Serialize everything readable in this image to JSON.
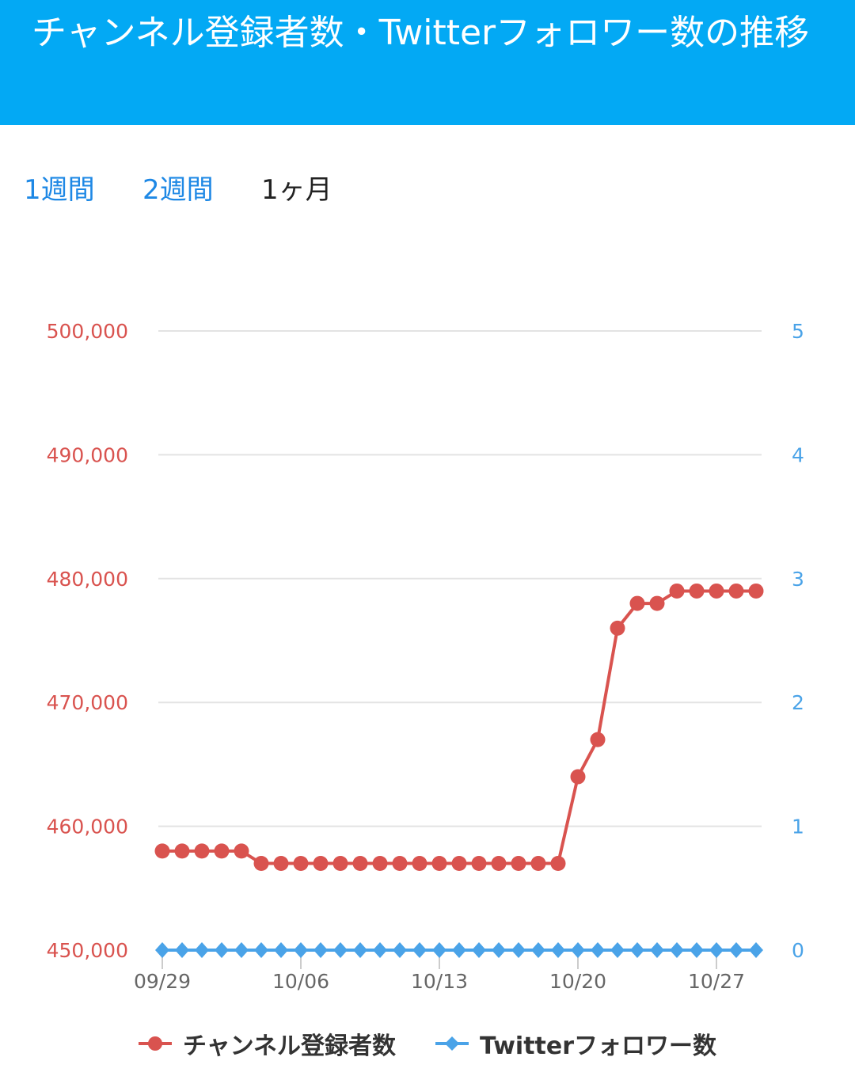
{
  "header": {
    "title": "チャンネル登録者数・Twitterフォロワー数の推移"
  },
  "tabs": [
    {
      "label": "1週間"
    },
    {
      "label": "2週間"
    },
    {
      "label": "1ヶ月",
      "active": true
    }
  ],
  "chart_data": {
    "type": "line",
    "x": [
      "09/29",
      "09/30",
      "10/01",
      "10/02",
      "10/03",
      "10/04",
      "10/05",
      "10/06",
      "10/07",
      "10/08",
      "10/09",
      "10/10",
      "10/11",
      "10/12",
      "10/13",
      "10/14",
      "10/15",
      "10/16",
      "10/17",
      "10/18",
      "10/19",
      "10/20",
      "10/21",
      "10/22",
      "10/23",
      "10/24",
      "10/25",
      "10/26",
      "10/27",
      "10/28",
      "10/29"
    ],
    "x_ticks": [
      "09/29",
      "10/06",
      "10/13",
      "10/20",
      "10/27"
    ],
    "series": [
      {
        "name": "チャンネル登録者数",
        "axis": "left",
        "color": "#d9534f",
        "marker": "circle",
        "values": [
          458000,
          458000,
          458000,
          458000,
          458000,
          457000,
          457000,
          457000,
          457000,
          457000,
          457000,
          457000,
          457000,
          457000,
          457000,
          457000,
          457000,
          457000,
          457000,
          457000,
          457000,
          464000,
          467000,
          476000,
          478000,
          478000,
          479000,
          479000,
          479000,
          479000,
          479000
        ]
      },
      {
        "name": "Twitterフォロワー数",
        "axis": "right",
        "color": "#4aa3e8",
        "marker": "diamond",
        "values": [
          0,
          0,
          0,
          0,
          0,
          0,
          0,
          0,
          0,
          0,
          0,
          0,
          0,
          0,
          0,
          0,
          0,
          0,
          0,
          0,
          0,
          0,
          0,
          0,
          0,
          0,
          0,
          0,
          0,
          0,
          0
        ]
      }
    ],
    "y_left": {
      "ylim": [
        450000,
        500000
      ],
      "ticks": [
        "450,000",
        "460,000",
        "470,000",
        "480,000",
        "490,000",
        "500,000"
      ],
      "color": "#d9534f"
    },
    "y_right": {
      "ylim": [
        0,
        5
      ],
      "ticks": [
        "0",
        "1",
        "2",
        "3",
        "4",
        "5"
      ],
      "color": "#4aa3e8"
    },
    "grid": true,
    "legend": "bottom"
  }
}
